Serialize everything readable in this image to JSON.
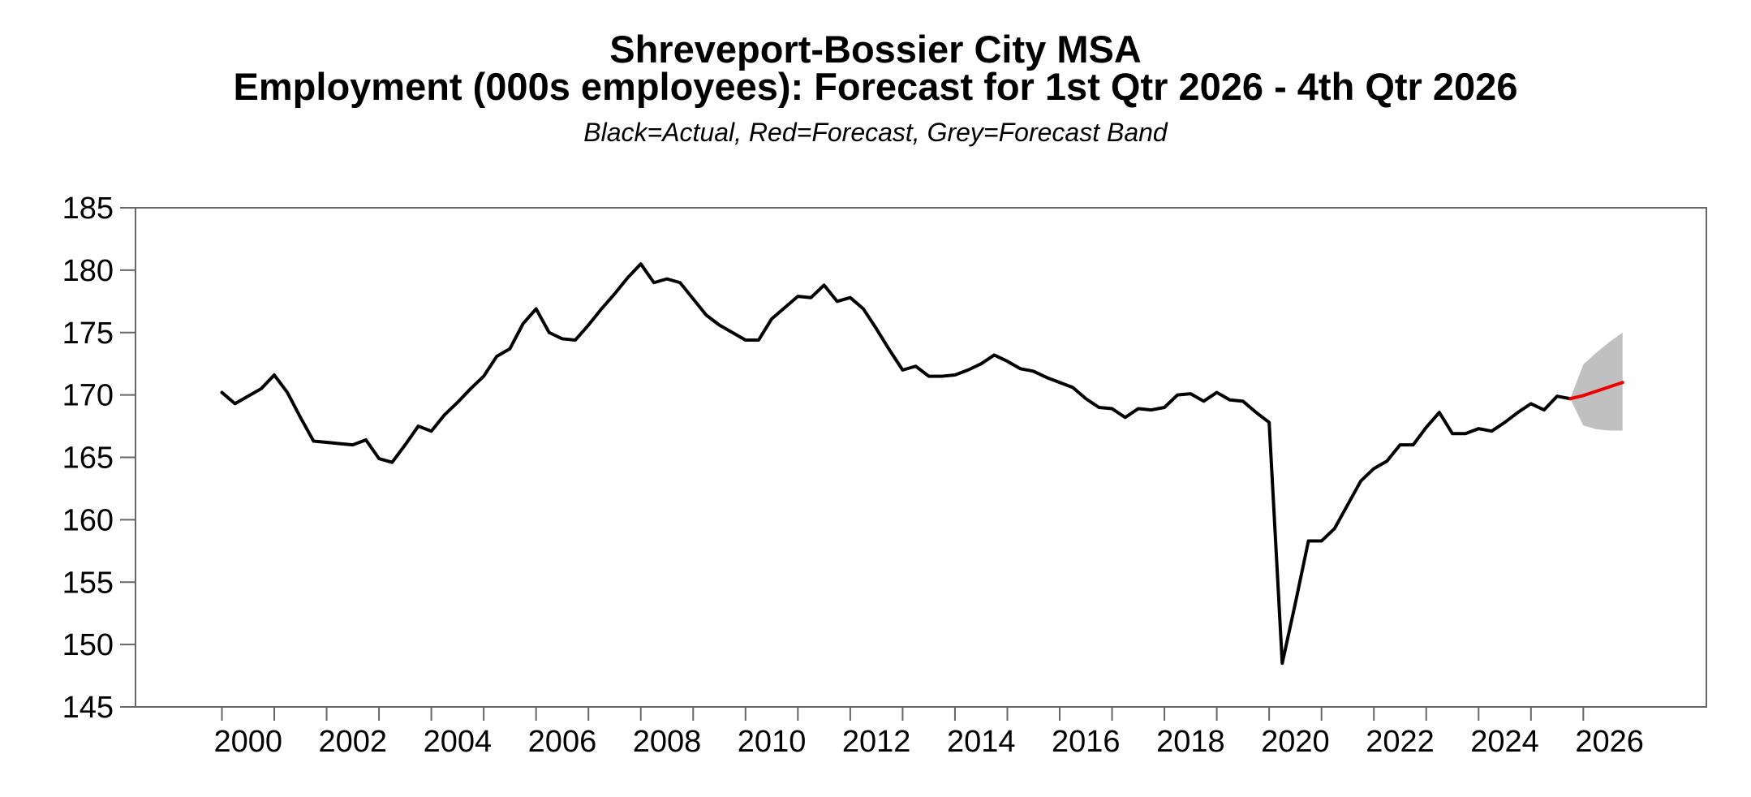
{
  "chart": {
    "title_line1": "Shreveport-Bossier City MSA",
    "title_line2": "Employment (000s employees): Forecast for 1st Qtr 2026 - 4th Qtr 2026",
    "subtitle": "Black=Actual, Red=Forecast, Grey=Forecast Band"
  },
  "chart_data": {
    "type": "line",
    "title": "Shreveport-Bossier City MSA",
    "subtitle": "Employment (000s employees): Forecast for 1st Qtr 2026 - 4th Qtr 2026",
    "legend_note": "Black=Actual, Red=Forecast, Grey=Forecast Band",
    "xlabel": "",
    "ylabel": "",
    "grid": false,
    "y_axis": {
      "min": 145,
      "max": 185,
      "tick_step": 5,
      "ticks": [
        145,
        150,
        155,
        160,
        165,
        170,
        175,
        180,
        185
      ]
    },
    "x_axis": {
      "domain_start": 1998.35,
      "domain_end": 2028.35,
      "tick_years": [
        2000,
        2001,
        2002,
        2003,
        2004,
        2005,
        2006,
        2007,
        2008,
        2009,
        2010,
        2011,
        2012,
        2013,
        2014,
        2015,
        2016,
        2017,
        2018,
        2019,
        2020,
        2021,
        2022,
        2023,
        2024,
        2025,
        2026
      ],
      "label_years": [
        2000,
        2002,
        2004,
        2006,
        2008,
        2010,
        2012,
        2014,
        2016,
        2018,
        2020,
        2022,
        2024,
        2026
      ],
      "labels_centered_at_year_offset": 0.5
    },
    "colors": {
      "actual": "#000000",
      "forecast": "#ee0000",
      "band": "#c0c0c0",
      "frame": "#666666",
      "text": "#000000"
    },
    "series": [
      {
        "name": "Actual",
        "frequency": "quarterly",
        "start": 2000.0,
        "step": 0.25,
        "values": [
          170.2,
          169.3,
          169.9,
          170.5,
          171.6,
          170.2,
          168.2,
          166.3,
          166.2,
          166.1,
          166.0,
          166.4,
          164.9,
          164.6,
          166.0,
          167.5,
          167.1,
          168.4,
          169.4,
          170.5,
          171.5,
          173.1,
          173.7,
          175.7,
          176.9,
          175.0,
          174.5,
          174.4,
          175.6,
          176.9,
          178.1,
          179.4,
          180.5,
          179.0,
          179.3,
          179.0,
          177.7,
          176.4,
          175.6,
          175.0,
          174.4,
          174.4,
          176.1,
          177.0,
          177.9,
          177.8,
          178.8,
          177.5,
          177.8,
          176.9,
          175.3,
          173.6,
          172.0,
          172.3,
          171.5,
          171.5,
          171.6,
          172.0,
          172.5,
          173.2,
          172.7,
          172.1,
          171.9,
          171.4,
          171.0,
          170.6,
          169.7,
          169.0,
          168.9,
          168.2,
          168.9,
          168.8,
          169.0,
          170.0,
          170.1,
          169.5,
          170.2,
          169.6,
          169.5,
          168.6,
          167.8,
          148.5,
          153.3,
          158.3,
          158.3,
          159.3,
          161.2,
          163.1,
          164.1,
          164.7,
          166.0,
          166.0,
          167.4,
          168.6,
          166.9,
          166.9,
          167.3,
          167.1,
          167.8,
          168.6,
          169.3,
          168.8,
          169.9,
          169.7
        ]
      },
      {
        "name": "Forecast",
        "frequency": "quarterly",
        "start": 2025.75,
        "step": 0.25,
        "values": [
          169.7,
          169.95,
          170.3,
          170.65,
          171.0
        ]
      }
    ],
    "band": {
      "name": "Forecast Band",
      "start": 2025.75,
      "step": 0.25,
      "upper": [
        169.7,
        172.45,
        173.4,
        174.25,
        175.0
      ],
      "lower": [
        169.7,
        167.55,
        167.25,
        167.15,
        167.15
      ]
    }
  }
}
